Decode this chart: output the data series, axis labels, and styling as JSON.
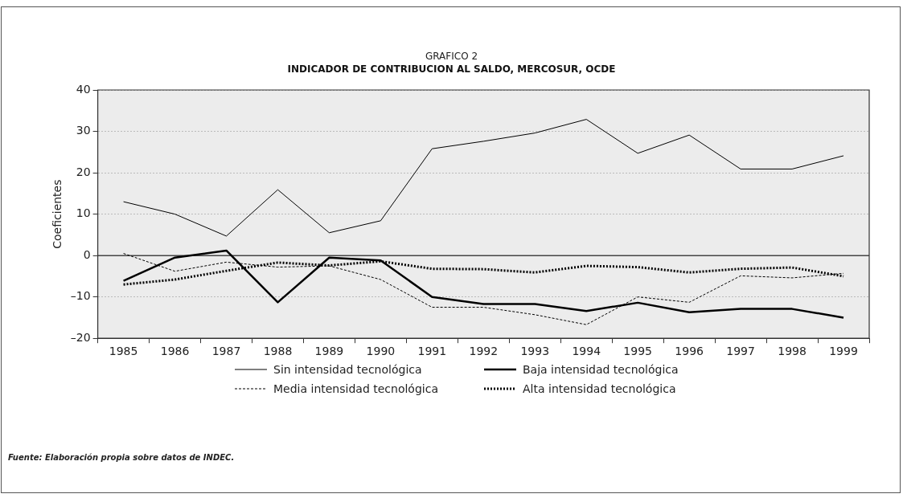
{
  "chart_data": {
    "type": "line",
    "title": "GRAFICO 2",
    "subtitle": "INDICADOR DE CONTRIBUCION AL SALDO, MERCOSUR, OCDE",
    "ylabel": "Coeficientes",
    "categories": [
      "1985",
      "1986",
      "1987",
      "1988",
      "1989",
      "1990",
      "1991",
      "1992",
      "1993",
      "1994",
      "1995",
      "1996",
      "1997",
      "1998",
      "1999"
    ],
    "series": [
      {
        "name": "Sin intensidad tecnológica",
        "color": "#000000",
        "line_style": "solid",
        "values": [
          13,
          10,
          4.7,
          15.9,
          5.5,
          8.4,
          25.8,
          27.6,
          29.6,
          32.9,
          24.7,
          29.1,
          20.9,
          20.9,
          24.1
        ]
      },
      {
        "name": "Baja intensidad tecnológica",
        "color": "#000000",
        "line_style": "solid",
        "values": [
          -6.1,
          -0.5,
          1.2,
          -11.3,
          -0.5,
          -1.2,
          -10,
          -11.7,
          -11.7,
          -13.4,
          -11.4,
          -13.7,
          -12.9,
          -12.9,
          -15
        ]
      },
      {
        "name": "Media intensidad tecnológica",
        "color": "#000000",
        "line_style": "dashed",
        "values": [
          0.5,
          -3.8,
          -1.6,
          -2.8,
          -2.5,
          -5.8,
          -12.5,
          -12.5,
          -14.3,
          -16.7,
          -10,
          -11.3,
          -4.9,
          -5.4,
          -4.3
        ]
      },
      {
        "name": "Alta intensidad tecnológica",
        "color": "#000000",
        "line_style": "dotted",
        "values": [
          -7,
          -5.8,
          -3.7,
          -1.7,
          -2.4,
          -1.4,
          -3.2,
          -3.3,
          -4.1,
          -2.5,
          -2.8,
          -4.1,
          -3.2,
          -2.9,
          -5
        ]
      }
    ],
    "ylim": [
      -20,
      40
    ],
    "yticks": [
      {
        "value": -20,
        "label": "–20"
      },
      {
        "value": -10,
        "label": "–10"
      },
      0,
      10,
      20,
      30,
      40
    ],
    "grid": "y",
    "legend": "bottom",
    "marker": "none",
    "annotations": [
      "Fuente: Elaboración propia sobre datos de INDEC."
    ]
  }
}
